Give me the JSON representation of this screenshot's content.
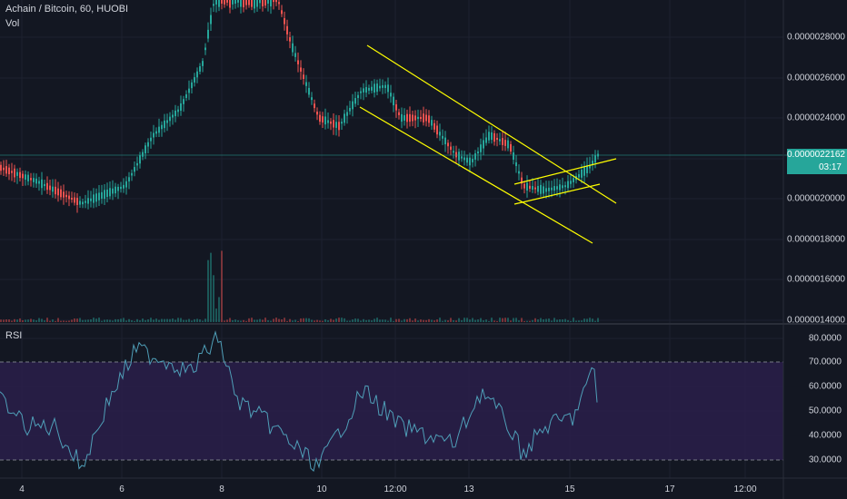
{
  "legend": {
    "symbol": "Achain / Bitcoin, 60, HUOBI",
    "volume_label": "Vol",
    "rsi_label": "RSI"
  },
  "price_axis": [
    "0.0000028000",
    "0.0000026000",
    "0.0000024000",
    "0.0000020000",
    "0.0000018000",
    "0.0000016000",
    "0.0000014000"
  ],
  "rsi_axis": [
    "80.0000",
    "70.0000",
    "60.0000",
    "50.0000",
    "40.0000",
    "30.0000"
  ],
  "time_axis": [
    "4",
    "6",
    "8",
    "10",
    "12:00",
    "13",
    "15",
    "17",
    "12:00"
  ],
  "last_price": {
    "value": "0.0000022162",
    "countdown": "03:17"
  },
  "colors": {
    "background": "#131722",
    "up": "#26a69a",
    "down": "#ef5350",
    "rsi_line": "#4f9fb8",
    "rsi_band": "#2a1f4a",
    "channel": "#ffff00",
    "grid": "#1e2230"
  }
}
